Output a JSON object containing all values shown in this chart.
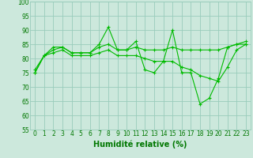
{
  "xlabel": "Humidité relative (%)",
  "x": [
    0,
    1,
    2,
    3,
    4,
    5,
    6,
    7,
    8,
    9,
    10,
    11,
    12,
    13,
    14,
    15,
    16,
    17,
    18,
    19,
    20,
    21,
    22,
    23
  ],
  "y_main": [
    75,
    81,
    84,
    84,
    82,
    82,
    82,
    85,
    91,
    83,
    83,
    86,
    76,
    75,
    79,
    90,
    75,
    75,
    64,
    66,
    73,
    84,
    85,
    86
  ],
  "y_trend1": [
    75,
    81,
    83,
    84,
    82,
    82,
    82,
    84,
    85,
    83,
    83,
    84,
    83,
    83,
    83,
    84,
    83,
    83,
    83,
    83,
    83,
    84,
    85,
    85
  ],
  "y_trend2": [
    76,
    81,
    82,
    83,
    81,
    81,
    81,
    82,
    83,
    81,
    81,
    81,
    80,
    79,
    79,
    79,
    77,
    76,
    74,
    73,
    72,
    77,
    83,
    85
  ],
  "line_color": "#00bb00",
  "bg_color": "#cce8dc",
  "grid_color": "#99ccbb",
  "ylim": [
    55,
    100
  ],
  "yticks": [
    55,
    60,
    65,
    70,
    75,
    80,
    85,
    90,
    95,
    100
  ],
  "xticks": [
    0,
    1,
    2,
    3,
    4,
    5,
    6,
    7,
    8,
    9,
    10,
    11,
    12,
    13,
    14,
    15,
    16,
    17,
    18,
    19,
    20,
    21,
    22,
    23
  ],
  "marker": "+",
  "marker_size": 3,
  "linewidth": 0.8,
  "xlabel_fontsize": 7,
  "tick_fontsize": 5.5,
  "tick_color": "#007700"
}
